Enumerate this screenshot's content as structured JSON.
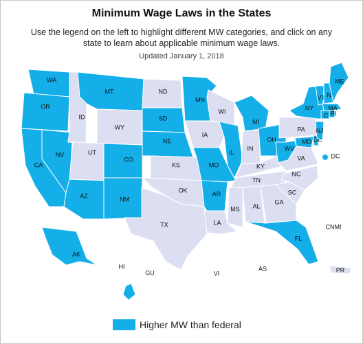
{
  "header": {
    "title": "Minimum Wage Laws in the States",
    "subtitle": "Use the legend on the left to highlight different MW categories, and click on any state to learn about applicable minimum wage laws.",
    "updated": "Updated January 1, 2018"
  },
  "colors": {
    "higher": "#14aee8",
    "other": "#dcdff2"
  },
  "legend": {
    "label": "Higher MW than federal"
  },
  "states": [
    {
      "label": "WA",
      "higher": true
    },
    {
      "label": "OR",
      "higher": true
    },
    {
      "label": "CA",
      "higher": true
    },
    {
      "label": "NV",
      "higher": true
    },
    {
      "label": "ID",
      "higher": false
    },
    {
      "label": "MT",
      "higher": true
    },
    {
      "label": "WY",
      "higher": false
    },
    {
      "label": "UT",
      "higher": false
    },
    {
      "label": "AZ",
      "higher": true
    },
    {
      "label": "CO",
      "higher": true
    },
    {
      "label": "NM",
      "higher": true
    },
    {
      "label": "ND",
      "higher": false
    },
    {
      "label": "SD",
      "higher": true
    },
    {
      "label": "NE",
      "higher": true
    },
    {
      "label": "KS",
      "higher": false
    },
    {
      "label": "OK",
      "higher": false
    },
    {
      "label": "TX",
      "higher": false
    },
    {
      "label": "MN",
      "higher": true
    },
    {
      "label": "IA",
      "higher": false
    },
    {
      "label": "MO",
      "higher": true
    },
    {
      "label": "AR",
      "higher": true
    },
    {
      "label": "LA",
      "higher": false
    },
    {
      "label": "WI",
      "higher": false
    },
    {
      "label": "IL",
      "higher": true
    },
    {
      "label": "MI",
      "higher": true
    },
    {
      "label": "IN",
      "higher": false
    },
    {
      "label": "OH",
      "higher": true
    },
    {
      "label": "KY",
      "higher": false
    },
    {
      "label": "TN",
      "higher": false
    },
    {
      "label": "MS",
      "higher": false
    },
    {
      "label": "AL",
      "higher": false
    },
    {
      "label": "GA",
      "higher": false
    },
    {
      "label": "FL",
      "higher": true
    },
    {
      "label": "SC",
      "higher": false
    },
    {
      "label": "NC",
      "higher": false
    },
    {
      "label": "VA",
      "higher": false
    },
    {
      "label": "WV",
      "higher": true
    },
    {
      "label": "MD",
      "higher": true
    },
    {
      "label": "DE",
      "higher": true
    },
    {
      "label": "PA",
      "higher": false
    },
    {
      "label": "NJ",
      "higher": true
    },
    {
      "label": "NY",
      "higher": true
    },
    {
      "label": "VT",
      "higher": true
    },
    {
      "label": "NH",
      "higher": true
    },
    {
      "label": "ME",
      "higher": true
    },
    {
      "label": "MA",
      "higher": true
    },
    {
      "label": "CT",
      "higher": true
    },
    {
      "label": "RI",
      "higher": true
    },
    {
      "label": "DC",
      "higher": true
    },
    {
      "label": "AK",
      "higher": true
    },
    {
      "label": "HI",
      "higher": true
    },
    {
      "label": "GU",
      "higher": false
    },
    {
      "label": "CNMI",
      "higher": false
    },
    {
      "label": "VI",
      "higher": false
    },
    {
      "label": "AS",
      "higher": false
    },
    {
      "label": "PR",
      "higher": false
    }
  ]
}
